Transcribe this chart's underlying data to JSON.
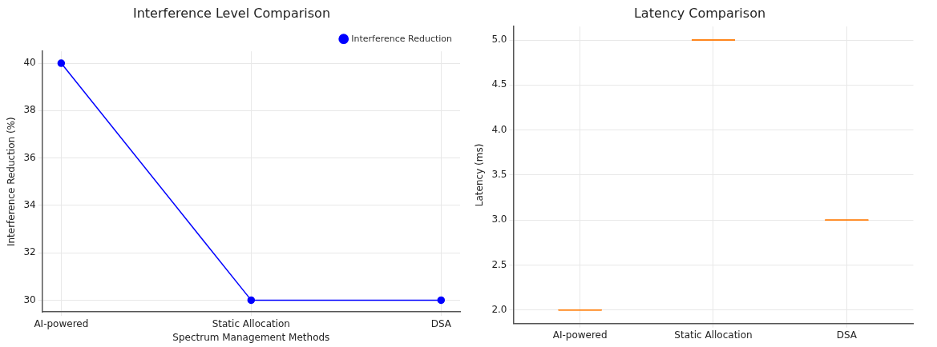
{
  "chart_data": [
    {
      "type": "line",
      "title": "Interference Level Comparison",
      "xlabel": "Spectrum Management Methods",
      "ylabel": "Interference Reduction (%)",
      "categories": [
        "AI-powered",
        "Static Allocation",
        "DSA"
      ],
      "series": [
        {
          "name": "Interference Reduction",
          "color": "#0000ff",
          "values": [
            40,
            30,
            30
          ]
        }
      ],
      "ylim": [
        29.5,
        40.5
      ],
      "yticks": [
        30,
        32,
        34,
        36,
        38,
        40
      ],
      "grid": true,
      "legend": "top right",
      "marker": "circle",
      "line_style": "solid"
    },
    {
      "type": "box",
      "title": "Latency Comparison",
      "ylabel": "Latency (ms)",
      "categories": [
        "AI-powered",
        "Static Allocation",
        "DSA"
      ],
      "color": "#ff7f0e",
      "boxes": [
        {
          "low": 2,
          "q1": 2,
          "median": 2,
          "q3": 2,
          "high": 2
        },
        {
          "low": 5,
          "q1": 5,
          "median": 5,
          "q3": 5,
          "high": 5
        },
        {
          "low": 3,
          "q1": 3,
          "median": 3,
          "q3": 3,
          "high": 3
        }
      ],
      "ylim": [
        1.85,
        5.15
      ],
      "yticks": [
        {
          "value": 2,
          "label": "2.0"
        },
        {
          "value": 2.5,
          "label": "2.5"
        },
        {
          "value": 3,
          "label": "3.0"
        },
        {
          "value": 3.5,
          "label": "3.5"
        },
        {
          "value": 4,
          "label": "4.0"
        },
        {
          "value": 4.5,
          "label": "4.5"
        },
        {
          "value": 5,
          "label": "5.0"
        }
      ],
      "grid": true
    }
  ]
}
